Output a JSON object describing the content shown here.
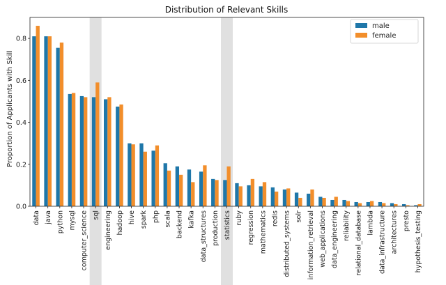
{
  "chart_data": {
    "type": "bar",
    "title": "Distribution of Relevant Skills",
    "xlabel": "",
    "ylabel": "Proportion of Applicants with Skill",
    "ylim": [
      0,
      0.9
    ],
    "yticks": [
      "0.0",
      "0.2",
      "0.4",
      "0.6",
      "0.8"
    ],
    "legend_position": "top-right",
    "grid": false,
    "highlighted_categories": [
      "sql",
      "statistics"
    ],
    "highlight_color": "#e0e0e0",
    "categories": [
      "data",
      "java",
      "python",
      "mysql",
      "computer_science",
      "sql",
      "engineering",
      "hadoop",
      "hive",
      "spark",
      "php",
      "scala",
      "backend",
      "kafka",
      "data_structures",
      "production",
      "statistics",
      "ruby",
      "regression",
      "mathematics",
      "redis",
      "distributed_systems",
      "solr",
      "information_retrieval",
      "web_applications",
      "data_engineering",
      "reliability",
      "relational_database",
      "lambda",
      "data_infrastructure",
      "architectures",
      "presto",
      "hypothesis_testing"
    ],
    "series": [
      {
        "name": "male",
        "color": "#1f77a9",
        "values": [
          0.81,
          0.81,
          0.755,
          0.535,
          0.525,
          0.52,
          0.51,
          0.475,
          0.3,
          0.3,
          0.265,
          0.205,
          0.19,
          0.175,
          0.165,
          0.13,
          0.125,
          0.11,
          0.1,
          0.095,
          0.09,
          0.08,
          0.065,
          0.06,
          0.045,
          0.03,
          0.03,
          0.02,
          0.02,
          0.02,
          0.015,
          0.01,
          0.005
        ]
      },
      {
        "name": "female",
        "color": "#f28e2b",
        "values": [
          0.86,
          0.81,
          0.78,
          0.54,
          0.52,
          0.59,
          0.52,
          0.485,
          0.295,
          0.26,
          0.29,
          0.17,
          0.15,
          0.115,
          0.195,
          0.125,
          0.19,
          0.095,
          0.13,
          0.115,
          0.07,
          0.085,
          0.04,
          0.08,
          0.04,
          0.045,
          0.025,
          0.015,
          0.025,
          0.015,
          0.01,
          0.005,
          0.01
        ]
      }
    ]
  }
}
